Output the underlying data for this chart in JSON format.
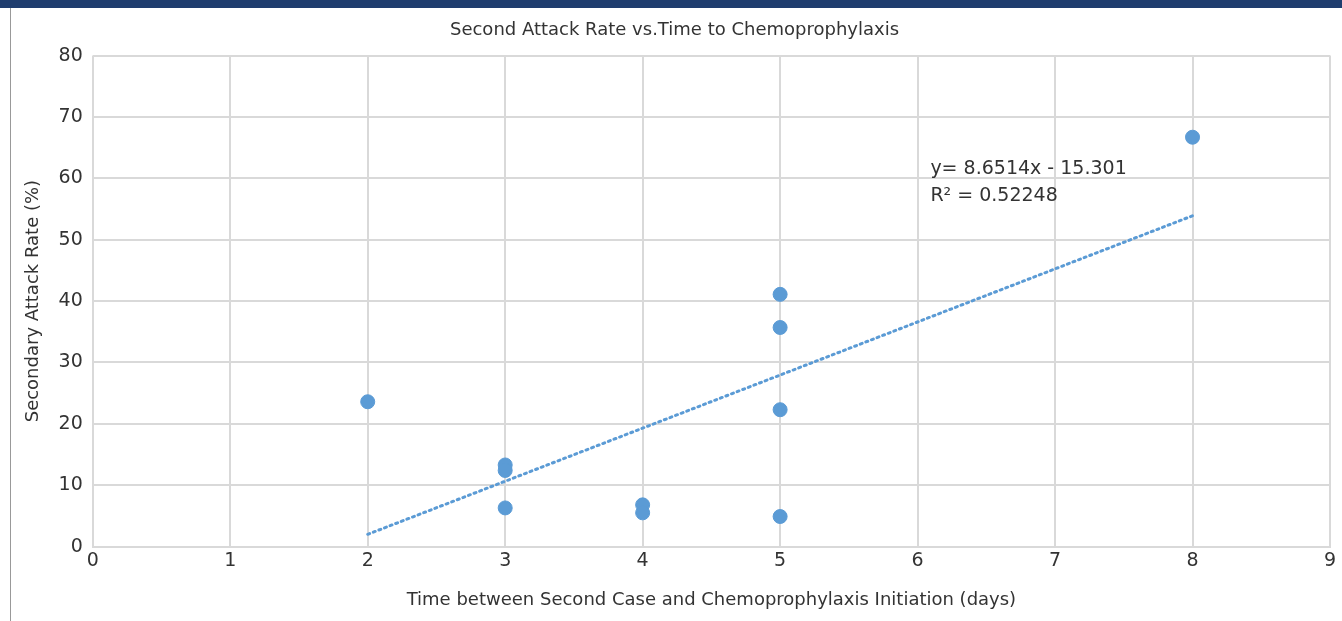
{
  "chart_data": {
    "type": "scatter",
    "title": "Second Attack Rate vs.Time to Chemoprophylaxis",
    "xlabel": "Time between Second Case and Chemoprophylaxis Initiation (days)",
    "ylabel": "Secondary Attack Rate (%)",
    "xlim": [
      0,
      9
    ],
    "xticks": [
      0,
      1,
      2,
      3,
      4,
      5,
      6,
      7,
      8,
      9
    ],
    "ylim": [
      0,
      80
    ],
    "yticks": [
      0,
      10,
      20,
      30,
      40,
      50,
      60,
      70,
      80
    ],
    "grid": true,
    "legend": false,
    "marker": "circle",
    "series": [
      {
        "color": "#5b9bd5",
        "x": [
          2,
          3,
          3,
          3,
          4,
          4,
          5,
          5,
          5,
          5,
          8
        ],
        "values": [
          23.6,
          13.3,
          12.4,
          6.3,
          6.8,
          5.5,
          41.1,
          35.7,
          22.3,
          4.9,
          66.7
        ]
      },
      {
        "type": "line",
        "line_style": "dotted",
        "marker": "none",
        "color": "#5b9bd5",
        "x": [
          2,
          8
        ],
        "values": [
          2.0,
          53.9
        ]
      }
    ],
    "annotations": [
      "y= 8.6514x - 15.301",
      "R² = 0.52248"
    ]
  }
}
